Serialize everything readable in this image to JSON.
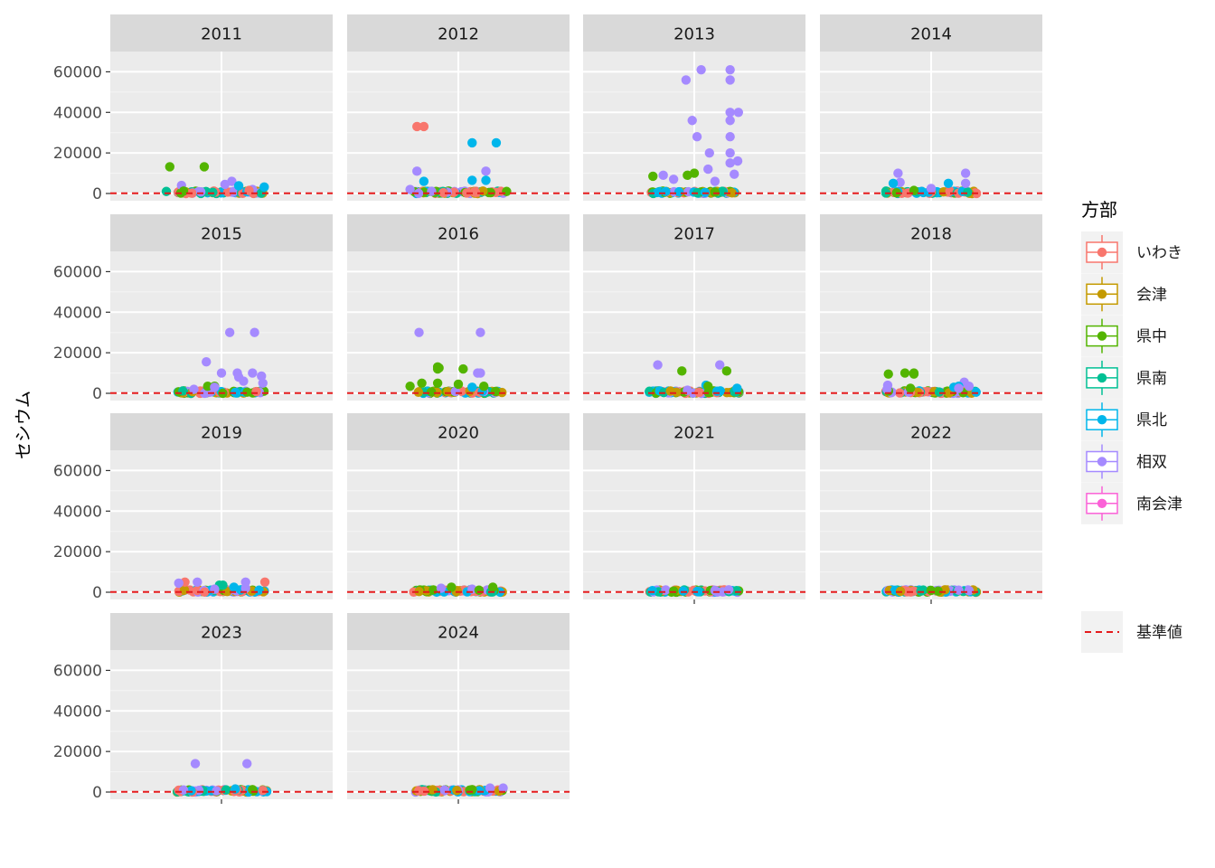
{
  "chart_data": {
    "type": "scatter",
    "ylabel": "セシウム",
    "ylim": [
      0,
      70000
    ],
    "yticks": [
      0,
      20000,
      40000,
      60000
    ],
    "reference_line": {
      "label": "基準値",
      "value": 100,
      "color": "#e41a1c"
    },
    "legend": {
      "title": "方部",
      "position": "right",
      "entries": [
        {
          "name": "いわき",
          "color": "#F8766D"
        },
        {
          "name": "会津",
          "color": "#C49A00"
        },
        {
          "name": "県中",
          "color": "#53B400"
        },
        {
          "name": "県南",
          "color": "#00C094"
        },
        {
          "name": "県北",
          "color": "#00B6EB"
        },
        {
          "name": "相双",
          "color": "#A58AFF"
        },
        {
          "name": "南会津",
          "color": "#FB61D7"
        }
      ]
    },
    "panels": [
      {
        "year": "2011",
        "points": [
          {
            "r": "県中",
            "x": -0.75,
            "y": 13200
          },
          {
            "r": "県中",
            "x": -0.25,
            "y": 13200
          },
          {
            "r": "相双",
            "x": -0.58,
            "y": 4000
          },
          {
            "r": "相双",
            "x": 0.15,
            "y": 6000
          },
          {
            "r": "相双",
            "x": 0.05,
            "y": 4500
          },
          {
            "r": "県北",
            "x": 0.25,
            "y": 3800
          },
          {
            "r": "県北",
            "x": 0.62,
            "y": 3200
          },
          {
            "r": "相双",
            "x": 0.45,
            "y": 2000
          },
          {
            "r": "いわき",
            "x": 0.4,
            "y": 1500
          },
          {
            "r": "県南",
            "x": -0.8,
            "y": 1000
          },
          {
            "r": "県中",
            "x": -0.55,
            "y": 1200
          },
          {
            "r": "相双",
            "x": -0.3,
            "y": 800
          }
        ]
      },
      {
        "year": "2012",
        "points": [
          {
            "r": "いわき",
            "x": -0.6,
            "y": 33000
          },
          {
            "r": "いわき",
            "x": -0.5,
            "y": 33000
          },
          {
            "r": "県北",
            "x": 0.2,
            "y": 25000
          },
          {
            "r": "県北",
            "x": 0.55,
            "y": 25000
          },
          {
            "r": "相双",
            "x": -0.6,
            "y": 11000
          },
          {
            "r": "相双",
            "x": 0.4,
            "y": 11000
          },
          {
            "r": "県北",
            "x": -0.5,
            "y": 6000
          },
          {
            "r": "県北",
            "x": 0.2,
            "y": 6500
          },
          {
            "r": "県北",
            "x": 0.4,
            "y": 6500
          },
          {
            "r": "相双",
            "x": -0.7,
            "y": 2000
          },
          {
            "r": "県中",
            "x": 0.7,
            "y": 1000
          },
          {
            "r": "いわき",
            "x": 0.25,
            "y": 500
          }
        ]
      },
      {
        "year": "2013",
        "points": [
          {
            "r": "相双",
            "x": 0.1,
            "y": 61000
          },
          {
            "r": "相双",
            "x": 0.52,
            "y": 61000
          },
          {
            "r": "相双",
            "x": -0.12,
            "y": 56000
          },
          {
            "r": "相双",
            "x": 0.52,
            "y": 56000
          },
          {
            "r": "相双",
            "x": 0.52,
            "y": 40000
          },
          {
            "r": "相双",
            "x": 0.64,
            "y": 40000
          },
          {
            "r": "相双",
            "x": -0.03,
            "y": 36000
          },
          {
            "r": "相双",
            "x": 0.52,
            "y": 36000
          },
          {
            "r": "相双",
            "x": 0.04,
            "y": 28000
          },
          {
            "r": "相双",
            "x": 0.52,
            "y": 28000
          },
          {
            "r": "相双",
            "x": 0.22,
            "y": 20000
          },
          {
            "r": "相双",
            "x": 0.52,
            "y": 20000
          },
          {
            "r": "相双",
            "x": 0.63,
            "y": 16000
          },
          {
            "r": "相双",
            "x": 0.52,
            "y": 15000
          },
          {
            "r": "相双",
            "x": 0.2,
            "y": 12000
          },
          {
            "r": "県中",
            "x": 0.0,
            "y": 10000
          },
          {
            "r": "県中",
            "x": -0.1,
            "y": 9000
          },
          {
            "r": "相双",
            "x": 0.58,
            "y": 9500
          },
          {
            "r": "県中",
            "x": -0.6,
            "y": 8500
          },
          {
            "r": "相双",
            "x": -0.45,
            "y": 9000
          },
          {
            "r": "相双",
            "x": -0.3,
            "y": 7000
          },
          {
            "r": "相双",
            "x": 0.3,
            "y": 6000
          }
        ]
      },
      {
        "year": "2014",
        "points": [
          {
            "r": "相双",
            "x": -0.48,
            "y": 10000
          },
          {
            "r": "相双",
            "x": 0.5,
            "y": 10000
          },
          {
            "r": "相双",
            "x": -0.45,
            "y": 5500
          },
          {
            "r": "県北",
            "x": -0.55,
            "y": 5000
          },
          {
            "r": "県北",
            "x": 0.25,
            "y": 5000
          },
          {
            "r": "相双",
            "x": 0.5,
            "y": 5000
          },
          {
            "r": "相双",
            "x": 0.0,
            "y": 2500
          },
          {
            "r": "県中",
            "x": -0.25,
            "y": 1500
          }
        ]
      },
      {
        "year": "2015",
        "points": [
          {
            "r": "相双",
            "x": 0.12,
            "y": 30000
          },
          {
            "r": "相双",
            "x": 0.48,
            "y": 30000
          },
          {
            "r": "相双",
            "x": -0.22,
            "y": 15500
          },
          {
            "r": "相双",
            "x": 0.0,
            "y": 10000
          },
          {
            "r": "相双",
            "x": 0.23,
            "y": 10000
          },
          {
            "r": "相双",
            "x": 0.45,
            "y": 10000
          },
          {
            "r": "相双",
            "x": 0.25,
            "y": 8000
          },
          {
            "r": "相双",
            "x": 0.58,
            "y": 8500
          },
          {
            "r": "相双",
            "x": 0.32,
            "y": 6000
          },
          {
            "r": "相双",
            "x": 0.6,
            "y": 5000
          },
          {
            "r": "県中",
            "x": -0.2,
            "y": 3500
          },
          {
            "r": "県中",
            "x": -0.1,
            "y": 3500
          },
          {
            "r": "相双",
            "x": -0.1,
            "y": 3000
          },
          {
            "r": "相双",
            "x": -0.4,
            "y": 2000
          }
        ]
      },
      {
        "year": "2016",
        "points": [
          {
            "r": "相双",
            "x": -0.57,
            "y": 30000
          },
          {
            "r": "相双",
            "x": 0.32,
            "y": 30000
          },
          {
            "r": "県中",
            "x": -0.3,
            "y": 13000
          },
          {
            "r": "県中",
            "x": -0.28,
            "y": 12500
          },
          {
            "r": "県中",
            "x": -0.3,
            "y": 12000
          },
          {
            "r": "県中",
            "x": 0.07,
            "y": 12000
          },
          {
            "r": "相双",
            "x": 0.28,
            "y": 10000
          },
          {
            "r": "相双",
            "x": 0.32,
            "y": 10000
          },
          {
            "r": "県中",
            "x": -0.53,
            "y": 5000
          },
          {
            "r": "県中",
            "x": -0.3,
            "y": 5000
          },
          {
            "r": "県中",
            "x": 0.0,
            "y": 4500
          },
          {
            "r": "県中",
            "x": -0.7,
            "y": 3500
          },
          {
            "r": "県中",
            "x": 0.37,
            "y": 3500
          },
          {
            "r": "県北",
            "x": 0.2,
            "y": 3000
          }
        ]
      },
      {
        "year": "2017",
        "points": [
          {
            "r": "相双",
            "x": -0.53,
            "y": 14000
          },
          {
            "r": "相双",
            "x": 0.37,
            "y": 14000
          },
          {
            "r": "県中",
            "x": -0.18,
            "y": 11000
          },
          {
            "r": "県中",
            "x": 0.47,
            "y": 11000
          },
          {
            "r": "県北",
            "x": 0.17,
            "y": 4000
          },
          {
            "r": "県中",
            "x": 0.2,
            "y": 3500
          },
          {
            "r": "県北",
            "x": 0.62,
            "y": 2500
          },
          {
            "r": "相双",
            "x": -0.1,
            "y": 1500
          }
        ]
      },
      {
        "year": "2018",
        "points": [
          {
            "r": "県中",
            "x": -0.62,
            "y": 9500
          },
          {
            "r": "県中",
            "x": -0.38,
            "y": 10000
          },
          {
            "r": "県中",
            "x": -0.25,
            "y": 10000
          },
          {
            "r": "県中",
            "x": -0.25,
            "y": 9500
          },
          {
            "r": "相双",
            "x": 0.48,
            "y": 5500
          },
          {
            "r": "相双",
            "x": -0.63,
            "y": 4000
          },
          {
            "r": "相双",
            "x": 0.55,
            "y": 3500
          },
          {
            "r": "県北",
            "x": 0.4,
            "y": 3500
          },
          {
            "r": "県北",
            "x": 0.33,
            "y": 3000
          },
          {
            "r": "相双",
            "x": 0.4,
            "y": 2500
          },
          {
            "r": "県中",
            "x": -0.3,
            "y": 2500
          },
          {
            "r": "相双",
            "x": -0.64,
            "y": 2000
          }
        ]
      },
      {
        "year": "2019",
        "points": [
          {
            "r": "いわき",
            "x": -0.53,
            "y": 5000
          },
          {
            "r": "相双",
            "x": -0.62,
            "y": 4500
          },
          {
            "r": "相双",
            "x": -0.35,
            "y": 5000
          },
          {
            "r": "相双",
            "x": 0.35,
            "y": 5000
          },
          {
            "r": "いわき",
            "x": 0.63,
            "y": 5000
          },
          {
            "r": "県南",
            "x": -0.03,
            "y": 3500
          },
          {
            "r": "県南",
            "x": 0.02,
            "y": 3500
          },
          {
            "r": "県北",
            "x": 0.18,
            "y": 2500
          },
          {
            "r": "相双",
            "x": 0.35,
            "y": 2000
          },
          {
            "r": "相双",
            "x": -0.1,
            "y": 1500
          }
        ]
      },
      {
        "year": "2020",
        "points": [
          {
            "r": "県中",
            "x": -0.1,
            "y": 2500
          },
          {
            "r": "県中",
            "x": 0.5,
            "y": 2500
          },
          {
            "r": "相双",
            "x": -0.25,
            "y": 2000
          },
          {
            "r": "相双",
            "x": 0.2,
            "y": 1500
          },
          {
            "r": "県中",
            "x": 0.3,
            "y": 1000
          }
        ]
      },
      {
        "year": "2021",
        "points": [
          {
            "r": "相双",
            "x": 0.5,
            "y": 1200
          },
          {
            "r": "相双",
            "x": 0.3,
            "y": 800
          },
          {
            "r": "県中",
            "x": -0.3,
            "y": 600
          }
        ]
      },
      {
        "year": "2022",
        "points": [
          {
            "r": "相双",
            "x": 0.4,
            "y": 1000
          },
          {
            "r": "相双",
            "x": 0.55,
            "y": 800
          },
          {
            "r": "県中",
            "x": 0.1,
            "y": 600
          }
        ]
      },
      {
        "year": "2023",
        "points": [
          {
            "r": "相双",
            "x": -0.38,
            "y": 14000
          },
          {
            "r": "相双",
            "x": 0.37,
            "y": 14000
          },
          {
            "r": "県北",
            "x": 0.2,
            "y": 1500
          },
          {
            "r": "県中",
            "x": 0.45,
            "y": 1200
          },
          {
            "r": "相双",
            "x": -0.55,
            "y": 1000
          },
          {
            "r": "いわき",
            "x": 0.6,
            "y": 800
          }
        ]
      },
      {
        "year": "2024",
        "points": [
          {
            "r": "相双",
            "x": 0.46,
            "y": 2000
          },
          {
            "r": "相双",
            "x": 0.65,
            "y": 2000
          },
          {
            "r": "県中",
            "x": 0.2,
            "y": 1200
          },
          {
            "r": "相双",
            "x": -0.2,
            "y": 1000
          }
        ]
      }
    ]
  }
}
